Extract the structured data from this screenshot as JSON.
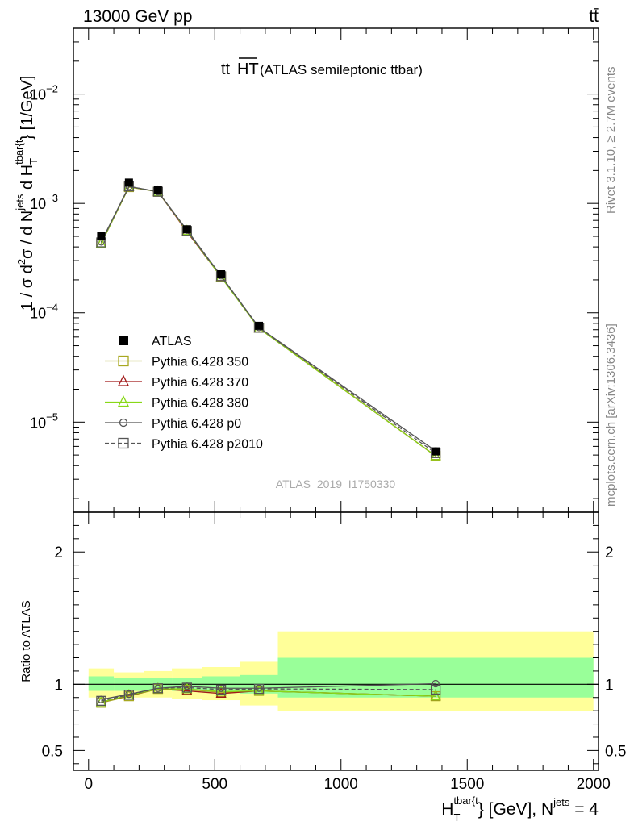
{
  "header": {
    "left": "13000 GeV pp",
    "right": "tt̄"
  },
  "side_labels": {
    "rivet": "Rivet 3.1.10, ≥ 2.7M events",
    "mcplots": "mcplots.cern.ch [arXiv:1306.3436]"
  },
  "colors": {
    "band_outer": "#ffff99",
    "band_inner": "#99ff99",
    "atlas": "#000000",
    "p350": "#a8a820",
    "p370": "#a01818",
    "p380": "#88d818",
    "p0": "#555555",
    "p2010": "#555555"
  },
  "chart_data": [
    {
      "type": "line",
      "title": "ttHT (ATLAS semileptonic ttbar)",
      "title_main": "tt",
      "title_over": "HT",
      "title_rest": " (ATLAS semileptonic ttbar)",
      "watermark": "ATLAS_2019_I1750330",
      "ylabel": "1 / σ d²σ / d N^jets d H_T^tbar{t} [1/GeV]",
      "ylabel_parts": {
        "lead": "1 / σ d",
        "sup2": "2",
        "mid": "σ / d N",
        "jets": "jets",
        "dh": " d H",
        "T": "T",
        "tbar": "tbar{t",
        "close": "} [1/GeV]"
      },
      "yscale": "log",
      "ylim": [
        1.5e-06,
        0.04
      ],
      "xlim": [
        -60,
        2020
      ],
      "ytick_labels": [
        {
          "value": 1e-05,
          "base": "10",
          "exp": "−5"
        },
        {
          "value": 0.0001,
          "base": "10",
          "exp": "−4"
        },
        {
          "value": 0.001,
          "base": "10",
          "exp": "−3"
        },
        {
          "value": 0.01,
          "base": "10",
          "exp": "−2"
        }
      ],
      "atlas": {
        "name": "ATLAS",
        "x": [
          50,
          160,
          275,
          390,
          525,
          675,
          1375
        ],
        "y": [
          0.0005,
          0.00155,
          0.00132,
          0.00058,
          0.000225,
          7.6e-05,
          5.4e-06
        ]
      },
      "series": [
        {
          "name": "Pythia 6.428 350",
          "key": "p350",
          "marker": "square",
          "dash": false,
          "y": [
            0.00043,
            0.00141,
            0.00128,
            0.000555,
            0.000213,
            7.3e-05,
            4.9e-06
          ]
        },
        {
          "name": "Pythia 6.428 370",
          "key": "p370",
          "marker": "triangle",
          "dash": false,
          "y": [
            0.00043,
            0.00142,
            0.00128,
            0.00055,
            0.000213,
            7.2e-05,
            4.9e-06
          ]
        },
        {
          "name": "Pythia 6.428 380",
          "key": "p380",
          "marker": "triangle",
          "dash": false,
          "y": [
            0.00043,
            0.00142,
            0.00128,
            0.00056,
            0.000212,
            7.2e-05,
            4.9e-06
          ]
        },
        {
          "name": "Pythia 6.428 p0",
          "key": "p0",
          "marker": "circle",
          "dash": false,
          "y": [
            0.000445,
            0.00143,
            0.00128,
            0.00057,
            0.000218,
            7.35e-05,
            5.45e-06
          ]
        },
        {
          "name": "Pythia 6.428 p2010",
          "key": "p2010",
          "marker": "square",
          "dash": true,
          "y": [
            0.00044,
            0.00143,
            0.00128,
            0.00056,
            0.000216,
            7.3e-05,
            5.2e-06
          ]
        }
      ]
    },
    {
      "type": "line",
      "ylabel": "Ratio to ATLAS",
      "xlabel": "H_T^tbar{t} [GeV], N^jets = 4",
      "xlabel_parts": {
        "H": "H",
        "T": "T",
        "tbar": "tbar{t",
        "rest": "} [GeV], N",
        "jets": "jets",
        "eq": " = 4"
      },
      "ylim": [
        0.35,
        2.3
      ],
      "xlim": [
        -60,
        2020
      ],
      "yticks": [
        0.5,
        1,
        2
      ],
      "ytick_labels": [
        "0.5",
        "1",
        "2"
      ],
      "xticks": [
        0,
        500,
        1000,
        1500,
        2000
      ],
      "xtick_labels": [
        "0",
        "500",
        "1000",
        "1500",
        "2000"
      ],
      "bands": [
        {
          "x0": 0,
          "x1": 100,
          "inner": [
            0.95,
            1.06
          ],
          "outer": [
            0.9,
            1.12
          ]
        },
        {
          "x0": 100,
          "x1": 220,
          "inner": [
            0.95,
            1.05
          ],
          "outer": [
            0.9,
            1.09
          ]
        },
        {
          "x0": 220,
          "x1": 330,
          "inner": [
            0.955,
            1.05
          ],
          "outer": [
            0.9,
            1.1
          ]
        },
        {
          "x0": 330,
          "x1": 450,
          "inner": [
            0.95,
            1.05
          ],
          "outer": [
            0.89,
            1.12
          ]
        },
        {
          "x0": 450,
          "x1": 600,
          "inner": [
            0.94,
            1.06
          ],
          "outer": [
            0.88,
            1.13
          ]
        },
        {
          "x0": 600,
          "x1": 750,
          "inner": [
            0.93,
            1.07
          ],
          "outer": [
            0.84,
            1.17
          ]
        },
        {
          "x0": 750,
          "x1": 2000,
          "inner": [
            0.9,
            1.2
          ],
          "outer": [
            0.8,
            1.4
          ]
        }
      ],
      "x": [
        50,
        160,
        275,
        390,
        525,
        675,
        1375
      ],
      "series": [
        {
          "name": "Pythia 6.428 350",
          "key": "p350",
          "marker": "square",
          "dash": false,
          "values": [
            0.86,
            0.91,
            0.965,
            0.96,
            0.94,
            0.95,
            0.91
          ]
        },
        {
          "name": "Pythia 6.428 370",
          "key": "p370",
          "marker": "triangle",
          "dash": false,
          "values": [
            0.865,
            0.915,
            0.965,
            0.95,
            0.93,
            0.95,
            0.91
          ]
        },
        {
          "name": "Pythia 6.428 380",
          "key": "p380",
          "marker": "triangle",
          "dash": false,
          "values": [
            0.865,
            0.918,
            0.965,
            0.965,
            0.945,
            0.95,
            0.91
          ]
        },
        {
          "name": "Pythia 6.428 p0",
          "key": "p0",
          "marker": "circle",
          "dash": false,
          "values": [
            0.885,
            0.925,
            0.97,
            0.985,
            0.97,
            0.97,
            1.005
          ]
        },
        {
          "name": "Pythia 6.428 p2010",
          "key": "p2010",
          "marker": "square",
          "dash": true,
          "values": [
            0.875,
            0.92,
            0.97,
            0.975,
            0.96,
            0.965,
            0.96
          ]
        }
      ]
    }
  ]
}
